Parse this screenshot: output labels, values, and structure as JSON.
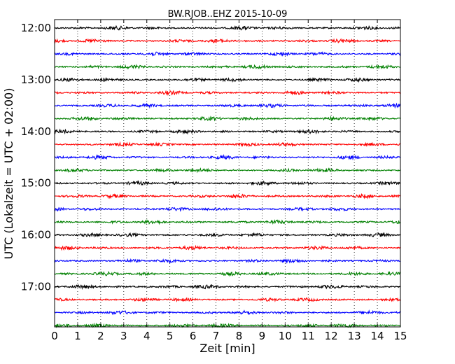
{
  "chart_data": {
    "type": "line",
    "title": "BW.RJOB..EHZ 2015-10-09",
    "xlabel": "Zeit  [min]",
    "ylabel": "UTC (Lokalzeit = UTC + 02:00)",
    "xlim": [
      0,
      15
    ],
    "x_ticks": [
      "0",
      "1",
      "2",
      "3",
      "4",
      "5",
      "6",
      "7",
      "8",
      "9",
      "10",
      "11",
      "12",
      "13",
      "14",
      "15"
    ],
    "grid": "vertical-dotted",
    "trace_interval_min": 15,
    "y_start": "12:00",
    "y_end": "18:00",
    "y_ticks": [
      "12:00",
      "13:00",
      "14:00",
      "15:00",
      "16:00",
      "17:00"
    ],
    "colors": [
      "#000000",
      "#ff0000",
      "#0000ff",
      "#008000"
    ],
    "traces": [
      {
        "start": "12:00",
        "color": "#000000"
      },
      {
        "start": "12:15",
        "color": "#ff0000"
      },
      {
        "start": "12:30",
        "color": "#0000ff"
      },
      {
        "start": "12:45",
        "color": "#008000"
      },
      {
        "start": "13:00",
        "color": "#000000"
      },
      {
        "start": "13:15",
        "color": "#ff0000"
      },
      {
        "start": "13:30",
        "color": "#0000ff"
      },
      {
        "start": "13:45",
        "color": "#008000"
      },
      {
        "start": "14:00",
        "color": "#000000"
      },
      {
        "start": "14:15",
        "color": "#ff0000"
      },
      {
        "start": "14:30",
        "color": "#0000ff"
      },
      {
        "start": "14:45",
        "color": "#008000"
      },
      {
        "start": "15:00",
        "color": "#000000"
      },
      {
        "start": "15:15",
        "color": "#ff0000"
      },
      {
        "start": "15:30",
        "color": "#0000ff"
      },
      {
        "start": "15:45",
        "color": "#008000"
      },
      {
        "start": "16:00",
        "color": "#000000"
      },
      {
        "start": "16:15",
        "color": "#ff0000"
      },
      {
        "start": "16:30",
        "color": "#0000ff"
      },
      {
        "start": "16:45",
        "color": "#008000"
      },
      {
        "start": "17:00",
        "color": "#000000"
      },
      {
        "start": "17:15",
        "color": "#ff0000"
      },
      {
        "start": "17:30",
        "color": "#0000ff"
      },
      {
        "start": "17:45",
        "color": "#008000"
      }
    ]
  }
}
